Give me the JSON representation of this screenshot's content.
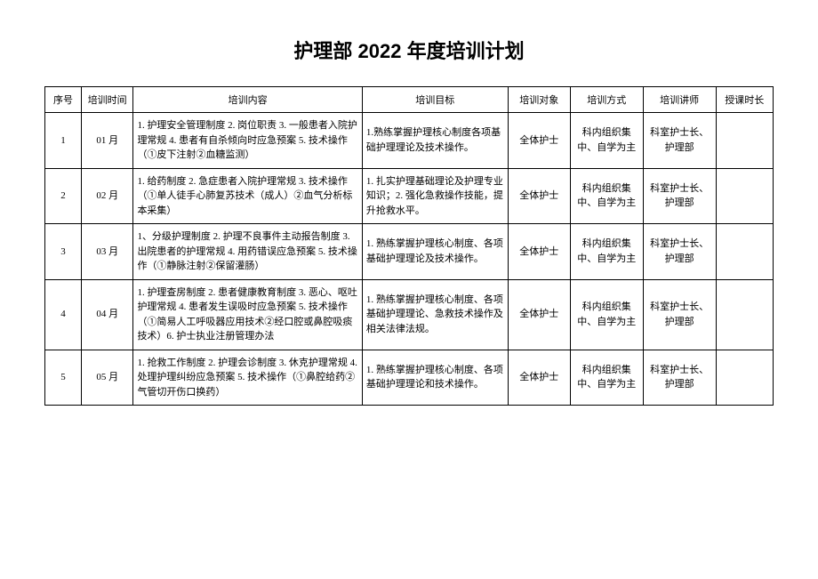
{
  "title": "护理部 2022 年度培训计划",
  "columns": [
    "序号",
    "培训时间",
    "培训内容",
    "培训目标",
    "培训对象",
    "培训方式",
    "培训讲师",
    "授课时长"
  ],
  "rows": [
    {
      "idx": "1",
      "time": "01 月",
      "content": "1. 护理安全管理制度 2. 岗位职责 3. 一般患者入院护理常规 4. 患者有自杀倾向时应急预案 5. 技术操作（①皮下注射②血糖监测）",
      "target": "1.熟练掌握护理核心制度各项基础护理理论及技术操作。",
      "audience": "全体护士",
      "method": "科内组织集中、自学为主",
      "lecturer": "科室护士长、护理部",
      "hours": ""
    },
    {
      "idx": "2",
      "time": "02 月",
      "content": "1. 给药制度 2. 急症患者入院护理常规 3. 技术操作（①单人徒手心肺复苏技术（成人）②血气分析标本采集）",
      "target": "1. 扎实护理基础理论及护理专业知识；2. 强化急救操作技能，提升抢救水平。",
      "audience": "全体护士",
      "method": "科内组织集中、自学为主",
      "lecturer": "科室护士长、护理部",
      "hours": ""
    },
    {
      "idx": "3",
      "time": "03 月",
      "content": "1、分级护理制度 2. 护理不良事件主动报告制度 3. 出院患者的护理常规 4. 用药错误应急预案 5. 技术操作（①静脉注射②保留灌肠）",
      "target": "1. 熟练掌握护理核心制度、各项基础护理理论及技术操作。",
      "audience": "全体护士",
      "method": "科内组织集中、自学为主",
      "lecturer": "科室护士长、护理部",
      "hours": ""
    },
    {
      "idx": "4",
      "time": "04 月",
      "content": "1. 护理查房制度 2. 患者健康教育制度 3. 恶心、呕吐护理常规 4. 患者发生误吸时应急预案 5. 技术操作（①简易人工呼吸器应用技术②经口腔或鼻腔吸痰技术）6. 护士执业注册管理办法",
      "target": "1. 熟练掌握护理核心制度、各项基础护理理论、急救技术操作及相关法律法规。",
      "audience": "全体护士",
      "method": "科内组织集中、自学为主",
      "lecturer": "科室护士长、护理部",
      "hours": ""
    },
    {
      "idx": "5",
      "time": "05 月",
      "content": "1. 抢救工作制度 2. 护理会诊制度 3. 休克护理常规 4. 处理护理纠纷应急预案 5. 技术操作（①鼻腔给药②气管切开伤口换药）",
      "target": "1. 熟练掌握护理核心制度、各项基础护理理论和技术操作。",
      "audience": "全体护士",
      "method": "科内组织集中、自学为主",
      "lecturer": "科室护士长、护理部",
      "hours": ""
    }
  ]
}
